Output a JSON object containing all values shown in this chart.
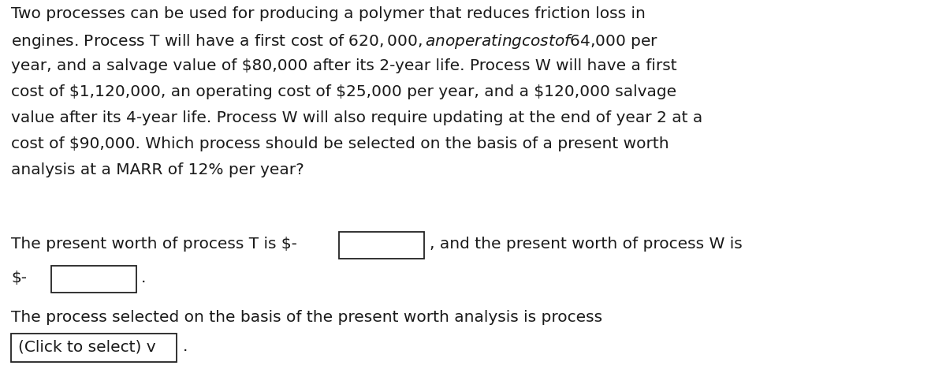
{
  "bg_color": "#ffffff",
  "text_color": "#1a1a1a",
  "font_size": 14.5,
  "line1": "Two processes can be used for producing a polymer that reduces friction loss in",
  "line2": "engines. Process T will have a first cost of $620,000, an operating cost of $64,000 per",
  "line3": "year, and a salvage value of $80,000 after its 2-year life. Process W will have a first",
  "line4": "cost of $1,120,000, an operating cost of $25,000 per year, and a $120,000 salvage",
  "line5": "value after its 4-year life. Process W will also require updating at the end of year 2 at a",
  "line6": "cost of $90,000. Which process should be selected on the basis of a present worth",
  "line7": "analysis at a MARR of 12% per year?",
  "ans1_pre": "The present worth of process T is $-",
  "ans1_post": ", and the present worth of process W is",
  "ans2_pre": "$-",
  "ans3": "The process selected on the basis of the present worth analysis is process",
  "dropdown_text": "(Click to select) v",
  "period": "."
}
